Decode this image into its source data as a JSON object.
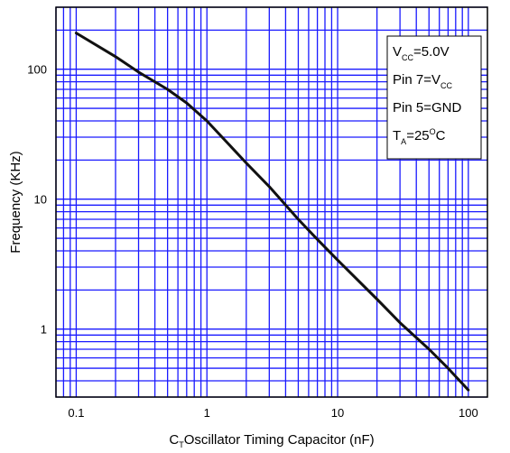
{
  "chart_data": {
    "type": "line",
    "title": "",
    "xlabel": {
      "prefix": "C",
      "sub": "T",
      "rest": "Oscillator Timing Capacitor (nF)"
    },
    "ylabel": "Frequency (KHz)",
    "xscale": "log",
    "yscale": "log",
    "xlim": [
      0.07,
      140
    ],
    "ylim": [
      0.3,
      300
    ],
    "grid": true,
    "x_ticks": [
      "0.1",
      "1",
      "10",
      "100"
    ],
    "y_ticks": [
      "1",
      "10",
      "100"
    ],
    "series": [
      {
        "x": [
          0.1,
          0.2,
          0.3,
          0.5,
          0.7,
          1,
          2,
          3,
          5,
          7,
          10,
          20,
          30,
          50,
          70,
          100
        ],
        "y": [
          190,
          125,
          95,
          70,
          55,
          40,
          19,
          12.5,
          7,
          4.9,
          3.4,
          1.7,
          1.12,
          0.7,
          0.5,
          0.34
        ]
      }
    ],
    "legend": {
      "position": "top-right",
      "lines": [
        [
          {
            "t": "V"
          },
          {
            "t": "CC",
            "sub": true
          },
          {
            "t": "=5.0V"
          }
        ],
        [
          {
            "t": "Pin 7=V"
          },
          {
            "t": "CC",
            "sub": true
          }
        ],
        [
          {
            "t": "Pin 5=GND"
          }
        ],
        [
          {
            "t": "T"
          },
          {
            "t": "A",
            "sub": true
          },
          {
            "t": "=25"
          },
          {
            "t": "O",
            "sup": true
          },
          {
            "t": "C"
          }
        ]
      ]
    },
    "colors": {
      "grid": "#1a1aff",
      "line": "#111111",
      "frame": "#000000"
    }
  }
}
